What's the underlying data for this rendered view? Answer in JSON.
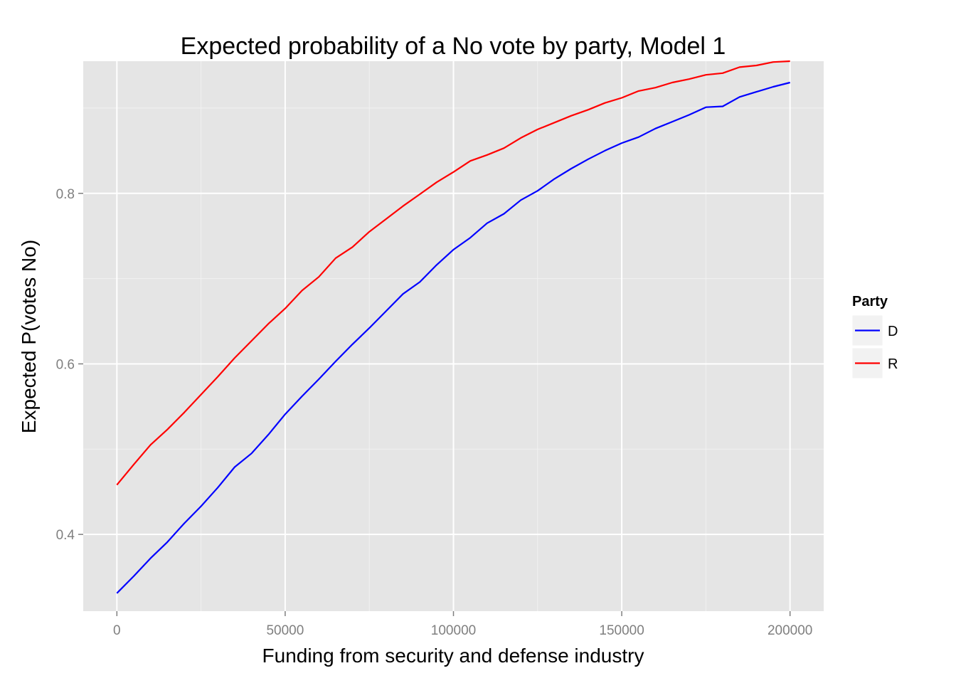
{
  "chart_data": {
    "type": "line",
    "title": "Expected probability of a No vote by party, Model 1",
    "xlabel": "Funding from security and defense industry",
    "ylabel": "Expected P(votes No)",
    "xlim": [
      -10000,
      210000
    ],
    "ylim": [
      0.31,
      0.955
    ],
    "x_ticks": [
      0,
      50000,
      100000,
      150000,
      200000
    ],
    "x_tick_labels": [
      "0",
      "50000",
      "100000",
      "150000",
      "200000"
    ],
    "y_ticks": [
      0.4,
      0.6,
      0.8
    ],
    "y_tick_labels": [
      "0.4",
      "0.6",
      "0.8"
    ],
    "grid": true,
    "panel_background": "#e5e5e5",
    "legend": {
      "title": "Party",
      "position": "right"
    },
    "x": [
      0,
      5000,
      10000,
      15000,
      20000,
      25000,
      30000,
      35000,
      40000,
      45000,
      50000,
      55000,
      60000,
      65000,
      70000,
      75000,
      80000,
      85000,
      90000,
      95000,
      100000,
      105000,
      110000,
      115000,
      120000,
      125000,
      130000,
      135000,
      140000,
      145000,
      150000,
      155000,
      160000,
      165000,
      170000,
      175000,
      180000,
      185000,
      190000,
      195000,
      200000
    ],
    "series": [
      {
        "name": "D",
        "color": "#0000ff",
        "values": [
          0.331,
          0.351,
          0.372,
          0.391,
          0.413,
          0.433,
          0.455,
          0.479,
          0.495,
          0.517,
          0.541,
          0.562,
          0.582,
          0.603,
          0.623,
          0.642,
          0.662,
          0.682,
          0.696,
          0.716,
          0.734,
          0.748,
          0.765,
          0.776,
          0.792,
          0.803,
          0.817,
          0.829,
          0.84,
          0.85,
          0.859,
          0.866,
          0.876,
          0.884,
          0.892,
          0.901,
          0.902,
          0.913,
          0.919,
          0.925,
          0.93
        ]
      },
      {
        "name": "R",
        "color": "#ff0000",
        "values": [
          0.458,
          0.482,
          0.505,
          0.523,
          0.543,
          0.564,
          0.585,
          0.607,
          0.627,
          0.647,
          0.665,
          0.686,
          0.702,
          0.724,
          0.737,
          0.755,
          0.77,
          0.785,
          0.799,
          0.813,
          0.825,
          0.838,
          0.845,
          0.853,
          0.865,
          0.875,
          0.883,
          0.891,
          0.898,
          0.906,
          0.912,
          0.92,
          0.924,
          0.93,
          0.934,
          0.939,
          0.941,
          0.948,
          0.95,
          0.954,
          0.955
        ]
      }
    ]
  }
}
